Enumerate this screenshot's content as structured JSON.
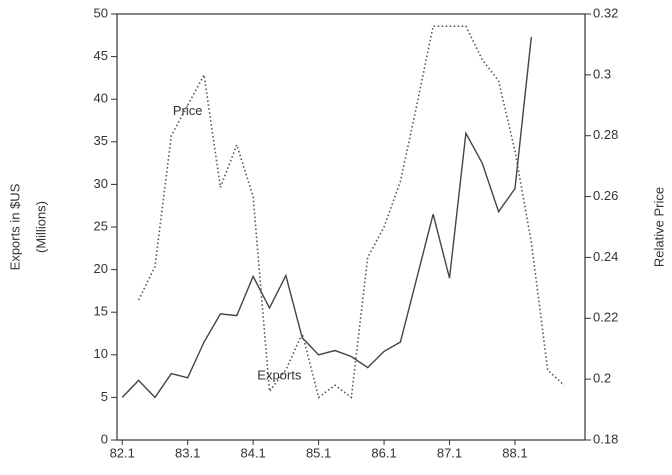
{
  "chart_data": {
    "type": "line",
    "y_label": "Exports in $US",
    "y_label_sub": "(Millions)",
    "y2_label": "Relative Price",
    "annotations": [
      {
        "text": "Price",
        "x": 83.0,
        "y": 0.288,
        "axis": "y2"
      },
      {
        "text": "Exports",
        "x": 84.4,
        "y": 7.5,
        "axis": "y"
      }
    ],
    "x": [
      82,
      82.25,
      82.5,
      82.75,
      83,
      83.25,
      83.5,
      83.75,
      84,
      84.25,
      84.5,
      84.75,
      85,
      85.25,
      85.5,
      85.75,
      86,
      86.25,
      86.5,
      86.75,
      87,
      87.25,
      87.5,
      87.75,
      88,
      88.25,
      88.5,
      88.75
    ],
    "series": [
      {
        "name": "Exports",
        "color": "#444444",
        "dash": "solid",
        "axis": "y",
        "values": [
          5,
          7,
          5,
          7.8,
          7.3,
          11.5,
          14.8,
          14.6,
          19.2,
          15.5,
          19.3,
          12,
          10,
          10.5,
          9.8,
          8.5,
          10.4,
          11.5,
          19,
          26.5,
          19,
          36,
          32.5,
          26.8,
          29.5,
          47.3,
          null,
          null
        ]
      },
      {
        "name": "Price",
        "color": "#555555",
        "dash": "dotted",
        "axis": "y2",
        "values": [
          null,
          0.226,
          0.237,
          0.28,
          0.29,
          0.3,
          0.263,
          0.277,
          0.26,
          0.196,
          0.203,
          0.215,
          0.194,
          0.198,
          0.194,
          0.24,
          0.25,
          0.265,
          0.29,
          0.316,
          0.316,
          0.316,
          0.305,
          0.298,
          0.275,
          0.245,
          0.203,
          0.198
        ]
      }
    ],
    "xlim": [
      81.92,
      89.07
    ],
    "xticks": [
      {
        "value": 82,
        "label": "82.1"
      },
      {
        "value": 83,
        "label": "83.1"
      },
      {
        "value": 84,
        "label": "84.1"
      },
      {
        "value": 85,
        "label": "85.1"
      },
      {
        "value": 86,
        "label": "86.1"
      },
      {
        "value": 87,
        "label": "87.1"
      },
      {
        "value": 88,
        "label": "88.1"
      }
    ],
    "ylim": [
      0,
      50
    ],
    "yticks": [
      0,
      5,
      10,
      15,
      20,
      25,
      30,
      35,
      40,
      45,
      50
    ],
    "y2lim": [
      0.18,
      0.32
    ],
    "y2ticks": [
      0.18,
      0.2,
      0.22,
      0.24,
      0.26,
      0.28,
      0.3,
      0.32
    ]
  }
}
